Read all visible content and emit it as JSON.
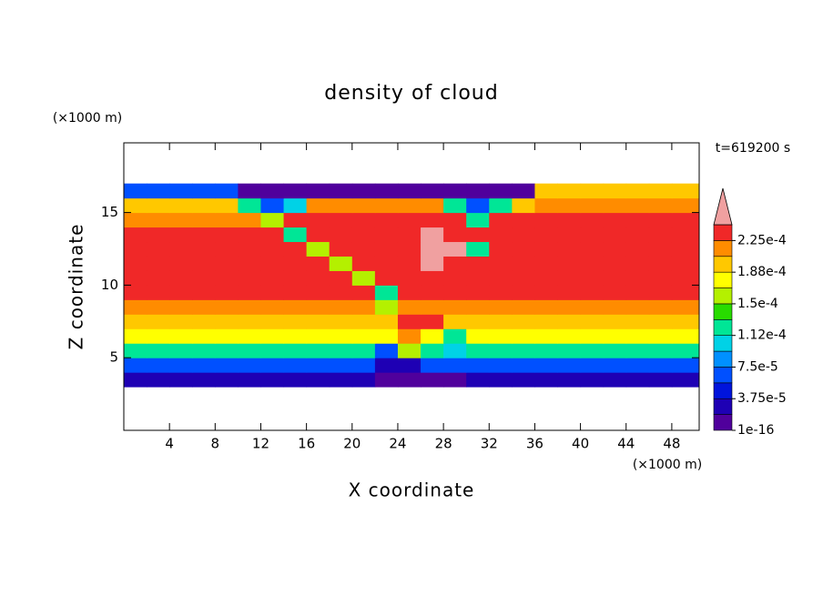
{
  "chart_data": {
    "type": "contour",
    "title": "density of cloud",
    "x_label": "X coordinate",
    "y_label": "Z coordinate",
    "x_unit": "(×1000 m)",
    "y_unit": "(×1000 m)",
    "time_label": "t=619200 s",
    "xlim": [
      0,
      50.4
    ],
    "ylim": [
      0,
      19.8
    ],
    "xticks": [
      4,
      8,
      12,
      16,
      20,
      24,
      28,
      32,
      36,
      40,
      44,
      48
    ],
    "yticks": [
      5,
      10,
      15
    ],
    "x": [
      1,
      3,
      5,
      7,
      9,
      11,
      13,
      15,
      17,
      19,
      21,
      23,
      25,
      27,
      29,
      31,
      33,
      35,
      37,
      39,
      41,
      43,
      45,
      47,
      49
    ],
    "y": [
      3.5,
      4.5,
      5.5,
      6.5,
      7.5,
      8.5,
      9.5,
      10.5,
      11.5,
      12.5,
      13.5,
      14.5,
      15.5,
      16.5
    ],
    "z": [
      [
        2e-05,
        2e-05,
        2e-05,
        2e-05,
        2e-05,
        2e-05,
        2e-05,
        2e-05,
        2e-05,
        2e-05,
        2e-05,
        1e-05,
        1e-05,
        1e-05,
        1e-05,
        2e-05,
        2e-05,
        2e-05,
        2e-05,
        2e-05,
        2e-05,
        2e-05,
        2e-05,
        2e-05,
        2e-05
      ],
      [
        6e-05,
        6e-05,
        6e-05,
        6e-05,
        6e-05,
        6e-05,
        6e-05,
        6e-05,
        6e-05,
        6e-05,
        6e-05,
        3e-05,
        3e-05,
        6e-05,
        6e-05,
        6e-05,
        6e-05,
        6e-05,
        6e-05,
        6e-05,
        6e-05,
        6e-05,
        6e-05,
        6e-05,
        6e-05
      ],
      [
        0.00012,
        0.00012,
        0.00012,
        0.00012,
        0.00012,
        0.00012,
        0.00012,
        0.00012,
        0.00012,
        0.00012,
        0.00012,
        6e-05,
        0.00016,
        0.00012,
        0.0001,
        0.00012,
        0.00012,
        0.00012,
        0.00012,
        0.00012,
        0.00012,
        0.00012,
        0.00012,
        0.00012,
        0.00012
      ],
      [
        0.00017,
        0.00017,
        0.00017,
        0.00017,
        0.00017,
        0.00017,
        0.00017,
        0.00017,
        0.00017,
        0.00017,
        0.00017,
        0.00017,
        0.00022,
        0.00017,
        0.00012,
        0.00017,
        0.00017,
        0.00017,
        0.00017,
        0.00017,
        0.00017,
        0.00017,
        0.00017,
        0.00017,
        0.00017
      ],
      [
        0.0002,
        0.0002,
        0.0002,
        0.0002,
        0.0002,
        0.0002,
        0.0002,
        0.0002,
        0.0002,
        0.0002,
        0.0002,
        0.0002,
        0.00023,
        0.00023,
        0.0002,
        0.0002,
        0.0002,
        0.0002,
        0.0002,
        0.0002,
        0.0002,
        0.0002,
        0.0002,
        0.0002,
        0.0002
      ],
      [
        0.00022,
        0.00022,
        0.00022,
        0.00022,
        0.00022,
        0.00022,
        0.00022,
        0.00022,
        0.00022,
        0.00022,
        0.00022,
        0.00016,
        0.00022,
        0.00022,
        0.00022,
        0.00022,
        0.00022,
        0.00022,
        0.00022,
        0.00022,
        0.00022,
        0.00022,
        0.00022,
        0.00022,
        0.00022
      ],
      [
        0.00023,
        0.00023,
        0.00023,
        0.00023,
        0.00023,
        0.00023,
        0.00023,
        0.00023,
        0.00023,
        0.00023,
        0.00023,
        0.00012,
        0.00023,
        0.00023,
        0.00023,
        0.00023,
        0.00023,
        0.00023,
        0.00023,
        0.00023,
        0.00023,
        0.00023,
        0.00023,
        0.00023,
        0.00023
      ],
      [
        0.00023,
        0.00023,
        0.00023,
        0.00023,
        0.00023,
        0.00023,
        0.00023,
        0.00023,
        0.00023,
        0.00023,
        0.00016,
        0.00023,
        0.00023,
        0.00023,
        0.00023,
        0.00023,
        0.00023,
        0.00023,
        0.00023,
        0.00023,
        0.00023,
        0.00023,
        0.00023,
        0.00023,
        0.00023
      ],
      [
        0.00023,
        0.00023,
        0.00023,
        0.00023,
        0.00023,
        0.00023,
        0.00023,
        0.00023,
        0.00023,
        0.00016,
        0.00023,
        0.00023,
        0.00023,
        0.00025,
        0.00023,
        0.00023,
        0.00023,
        0.00023,
        0.00023,
        0.00023,
        0.00023,
        0.00023,
        0.00023,
        0.00023,
        0.00023
      ],
      [
        0.00023,
        0.00023,
        0.00023,
        0.00023,
        0.00023,
        0.00023,
        0.00023,
        0.00023,
        0.00016,
        0.00023,
        0.00023,
        0.00023,
        0.00023,
        0.00025,
        0.00025,
        0.00012,
        0.00023,
        0.00023,
        0.00023,
        0.00023,
        0.00023,
        0.00023,
        0.00023,
        0.00023,
        0.00023
      ],
      [
        0.00023,
        0.00023,
        0.00023,
        0.00023,
        0.00023,
        0.00023,
        0.00023,
        0.00012,
        0.00023,
        0.00023,
        0.00023,
        0.00023,
        0.00023,
        0.00025,
        0.00023,
        0.00023,
        0.00023,
        0.00023,
        0.00023,
        0.00023,
        0.00023,
        0.00023,
        0.00023,
        0.00023,
        0.00023
      ],
      [
        0.00021,
        0.00021,
        0.00021,
        0.00021,
        0.00021,
        0.00021,
        0.00016,
        0.00023,
        0.00023,
        0.00023,
        0.00023,
        0.00023,
        0.00023,
        0.00023,
        0.00023,
        0.00012,
        0.00023,
        0.00023,
        0.00023,
        0.00023,
        0.00023,
        0.00023,
        0.00023,
        0.00023,
        0.00023
      ],
      [
        0.000195,
        0.000195,
        0.000195,
        0.000195,
        0.000195,
        0.00012,
        6e-05,
        0.0001,
        0.00021,
        0.00021,
        0.00021,
        0.00021,
        0.00021,
        0.00021,
        0.00012,
        6e-05,
        0.00012,
        0.000195,
        0.00021,
        0.00021,
        0.00021,
        0.00021,
        0.00021,
        0.00021,
        0.00021
      ],
      [
        6e-05,
        6e-05,
        6e-05,
        6e-05,
        6e-05,
        1e-05,
        1e-05,
        1e-05,
        1e-05,
        1e-05,
        1e-05,
        1e-05,
        1e-05,
        1e-05,
        1e-05,
        1e-05,
        1e-05,
        1e-05,
        0.00019,
        0.00019,
        0.00019,
        0.00019,
        0.00019,
        0.00019,
        0.00019
      ]
    ],
    "levels": [
      1e-16,
      1.875e-05,
      3.75e-05,
      5.625e-05,
      7.5e-05,
      9.375e-05,
      0.0001125,
      0.00013125,
      0.00015,
      0.00016875,
      0.0001875,
      0.00020625,
      0.000225,
      0.00024375
    ],
    "colors": [
      "#50009c",
      "#1e00b4",
      "#0014dc",
      "#0050ff",
      "#0090ff",
      "#00d2e6",
      "#00e696",
      "#28dc00",
      "#b4f000",
      "#ffff00",
      "#ffc800",
      "#ff8c00",
      "#f02828"
    ],
    "extend_color": "#f0a0a0",
    "cticks": [
      1e-16,
      {
        "value": 3.75e-05,
        "label": "3.75e-5"
      },
      {
        "value": 7.5e-05,
        "label": "7.5e-5"
      },
      {
        "value": 0.0001125,
        "label": "1.12e-4"
      },
      {
        "value": 0.00015,
        "label": "1.5e-4"
      },
      {
        "value": 0.0001875,
        "label": "1.88e-4"
      },
      {
        "value": 0.000225,
        "label": "2.25e-4"
      }
    ]
  }
}
